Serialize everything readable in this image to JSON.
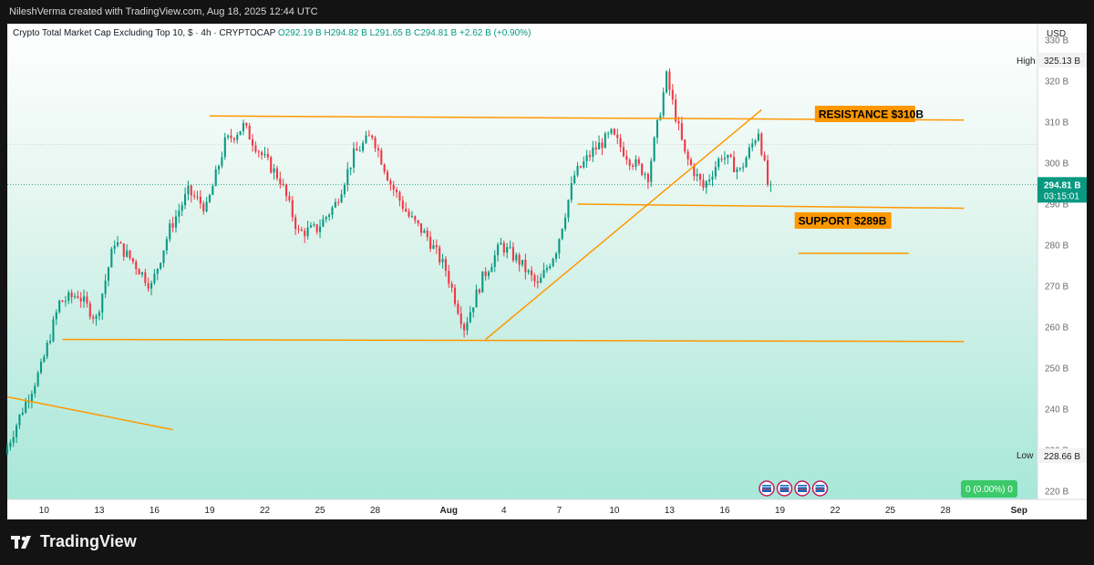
{
  "watermark": "NileshVerma created with TradingView.com, Aug 18, 2025 12:44 UTC",
  "legend": {
    "title": "Crypto Total Market Cap Excluding Top 10, $ · 4h · CRYPTOCAP",
    "o_label": "O",
    "o": "292.19 B",
    "h_label": "H",
    "h": "294.82 B",
    "l_label": "L",
    "l": "291.65 B",
    "c_label": "C",
    "c": "294.81 B",
    "change": "+2.62 B (+0.90%)"
  },
  "price_axis": {
    "currency": "USD",
    "high_label": "High",
    "high_value": "325.13 B",
    "low_label": "Low",
    "low_value": "228.66 B",
    "last_price": "294.81 B",
    "countdown": "03:15:01"
  },
  "volume_badge": "0 (0.00%) 0",
  "brand": "TradingView",
  "colors": {
    "up": "#089981",
    "down": "#f23645",
    "trendline": "#ff9800",
    "label_bg": "#ff9800"
  },
  "chart_data": {
    "type": "candlestick",
    "series_name": "Crypto Total Market Cap Excluding Top 10",
    "timeframe": "4h",
    "y_unit": "B USD",
    "ylim": [
      218,
      334
    ],
    "y_ticks": [
      220,
      230,
      240,
      250,
      260,
      270,
      280,
      290,
      300,
      310,
      320,
      330
    ],
    "y_tick_labels": [
      "220 B",
      "230 B",
      "240 B",
      "250 B",
      "260 B",
      "270 B",
      "280 B",
      "290 B",
      "300 B",
      "310 B",
      "320 B",
      "330 B"
    ],
    "x_start": "2025-07-08",
    "x_end": "2025-09-02",
    "x_ticks": [
      {
        "date": "2025-07-10",
        "label": "10"
      },
      {
        "date": "2025-07-13",
        "label": "13"
      },
      {
        "date": "2025-07-16",
        "label": "16"
      },
      {
        "date": "2025-07-19",
        "label": "19"
      },
      {
        "date": "2025-07-22",
        "label": "22"
      },
      {
        "date": "2025-07-25",
        "label": "25"
      },
      {
        "date": "2025-07-28",
        "label": "28"
      },
      {
        "date": "2025-08-01",
        "label": "Aug"
      },
      {
        "date": "2025-08-04",
        "label": "4"
      },
      {
        "date": "2025-08-07",
        "label": "7"
      },
      {
        "date": "2025-08-10",
        "label": "10"
      },
      {
        "date": "2025-08-13",
        "label": "13"
      },
      {
        "date": "2025-08-16",
        "label": "16"
      },
      {
        "date": "2025-08-19",
        "label": "19"
      },
      {
        "date": "2025-08-22",
        "label": "22"
      },
      {
        "date": "2025-08-25",
        "label": "25"
      },
      {
        "date": "2025-08-28",
        "label": "28"
      },
      {
        "date": "2025-09-01",
        "label": "Sep"
      }
    ],
    "last_price": 294.81,
    "high": 325.13,
    "low": 228.66,
    "close_path": [
      [
        "2025-07-08",
        229
      ],
      [
        "2025-07-09",
        240
      ],
      [
        "2025-07-10",
        250
      ],
      [
        "2025-07-11",
        266
      ],
      [
        "2025-07-12",
        268
      ],
      [
        "2025-07-13",
        262
      ],
      [
        "2025-07-14",
        281
      ],
      [
        "2025-07-15",
        276
      ],
      [
        "2025-07-16",
        270
      ],
      [
        "2025-07-17",
        284
      ],
      [
        "2025-07-18",
        293
      ],
      [
        "2025-07-19",
        289
      ],
      [
        "2025-07-20",
        305
      ],
      [
        "2025-07-21",
        309
      ],
      [
        "2025-07-22",
        302
      ],
      [
        "2025-07-23",
        296
      ],
      [
        "2025-07-24",
        283
      ],
      [
        "2025-07-25",
        284
      ],
      [
        "2025-07-26",
        290
      ],
      [
        "2025-07-27",
        302
      ],
      [
        "2025-07-28",
        307
      ],
      [
        "2025-07-29",
        295
      ],
      [
        "2025-07-30",
        287
      ],
      [
        "2025-07-31",
        282
      ],
      [
        "2025-08-01",
        274
      ],
      [
        "2025-08-02",
        260
      ],
      [
        "2025-08-03",
        272
      ],
      [
        "2025-08-04",
        280
      ],
      [
        "2025-08-05",
        276
      ],
      [
        "2025-08-06",
        270
      ],
      [
        "2025-08-07",
        279
      ],
      [
        "2025-08-08",
        297
      ],
      [
        "2025-08-09",
        303
      ],
      [
        "2025-08-10",
        307
      ],
      [
        "2025-08-11",
        301
      ],
      [
        "2025-08-12",
        297
      ],
      [
        "2025-08-13",
        321
      ],
      [
        "2025-08-14",
        302
      ],
      [
        "2025-08-15",
        294
      ],
      [
        "2025-08-16",
        302
      ],
      [
        "2025-08-17",
        298
      ],
      [
        "2025-08-18",
        308
      ],
      [
        "2025-08-18T12:00",
        294.81
      ]
    ],
    "annotations": [
      {
        "type": "label",
        "text": "RESISTANCE $310B",
        "y": 312
      },
      {
        "type": "label",
        "text": "SUPPORT $289B",
        "y": 286
      }
    ],
    "lines": [
      {
        "name": "resistance-line",
        "from": [
          "2025-07-19",
          311.5
        ],
        "to": [
          "2025-08-29",
          310.5
        ]
      },
      {
        "name": "support-line",
        "from": [
          "2025-08-08",
          290
        ],
        "to": [
          "2025-08-29",
          289
        ]
      },
      {
        "name": "lower-support-line",
        "from": [
          "2025-07-11",
          257
        ],
        "to": [
          "2025-08-29",
          256.5
        ]
      },
      {
        "name": "ascending-trendline",
        "from": [
          "2025-08-03",
          257
        ],
        "to": [
          "2025-08-18",
          313
        ]
      },
      {
        "name": "minor-level-line",
        "from": [
          "2025-08-20",
          278
        ],
        "to": [
          "2025-08-26",
          278
        ]
      },
      {
        "name": "descending-line",
        "from": [
          "2025-07-08",
          243
        ],
        "to": [
          "2025-07-17",
          235
        ]
      }
    ]
  }
}
